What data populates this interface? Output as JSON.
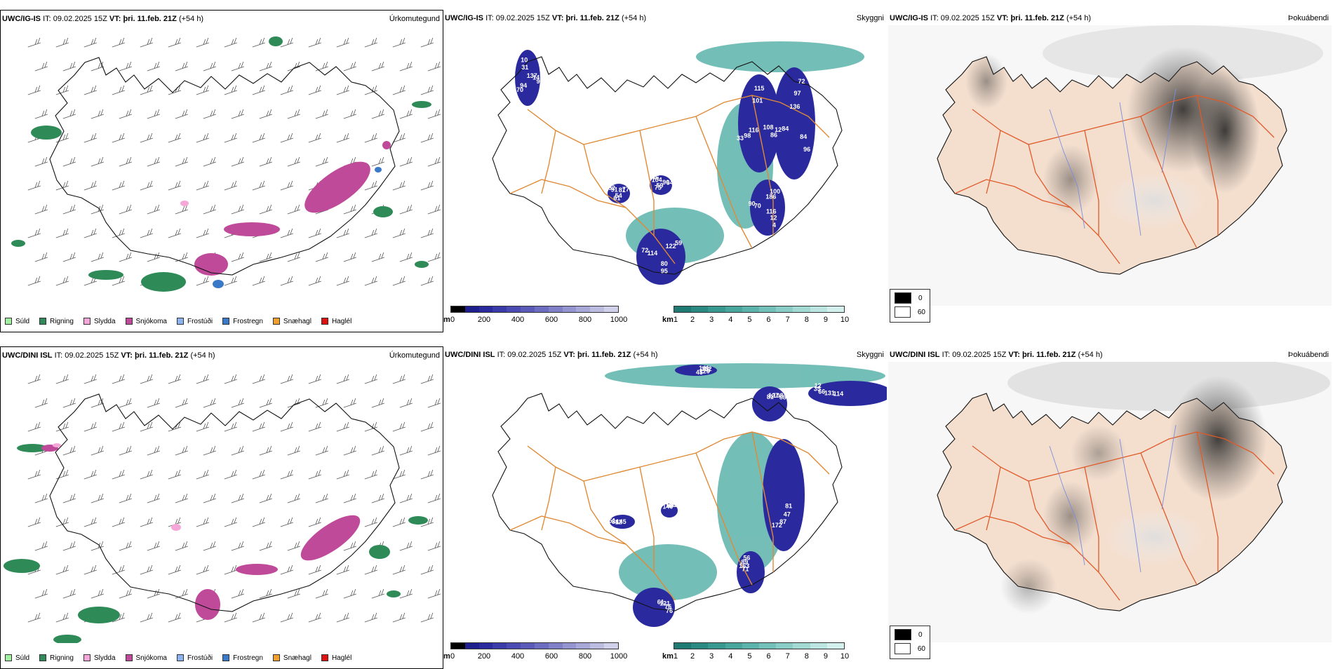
{
  "rows": [
    {
      "model": "UWC/IG-IS",
      "it_label": "IT:",
      "it_value": "09.02.2025 15Z",
      "vt_label": "VT:",
      "vt_value": "þri. 11.feb. 21Z",
      "lead": "(+54 h)",
      "labels": {
        "visibility": [
          "137",
          "116",
          "136",
          "116",
          "114",
          "81",
          "59",
          "31",
          "108",
          "84",
          "186",
          "80",
          "91",
          "90",
          "94",
          "101",
          "84",
          "70",
          "122",
          "54",
          "104",
          "14",
          "98",
          "97",
          "12",
          "72",
          "77",
          "75",
          "10",
          "86",
          "12",
          "100",
          "95",
          "82",
          "64",
          "70",
          "115",
          "96",
          "90",
          "59",
          "61",
          "46",
          "90",
          "33",
          "72",
          "4"
        ]
      }
    },
    {
      "model": "UWC/DINI ISL",
      "it_label": "IT:",
      "it_value": "09.02.2025 15Z",
      "vt_label": "VT:",
      "vt_value": "þri. 11.feb. 21Z",
      "lead": "(+54 h)",
      "labels": {
        "visibility": [
          "141",
          "114",
          "81",
          "81",
          "71",
          "61",
          "145",
          "140",
          "132",
          "131",
          "127",
          "47",
          "163",
          "121",
          "12",
          "16",
          "76",
          "66",
          "108",
          "87",
          "89",
          "76",
          "84",
          "65",
          "120",
          "35",
          "68",
          "172",
          "56",
          "76",
          "51",
          "81",
          "45",
          "12"
        ]
      }
    }
  ],
  "panel_titles": {
    "precip": "Úrkomutegund",
    "visibility": "Skyggni",
    "fog": "Þokuábendi"
  },
  "precip_legend": [
    {
      "label": "Súld",
      "color": "#a3f0a3"
    },
    {
      "label": "Rigning",
      "color": "#2e8b57"
    },
    {
      "label": "Slydda",
      "color": "#f5a8d8"
    },
    {
      "label": "Snjókoma",
      "color": "#c04a9a"
    },
    {
      "label": "Frostúði",
      "color": "#8ab4f0"
    },
    {
      "label": "Frostregn",
      "color": "#3a78c8"
    },
    {
      "label": "Snæhagl",
      "color": "#f0a030"
    },
    {
      "label": "Haglél",
      "color": "#e01010"
    }
  ],
  "cloud_colorbar": {
    "unit": "m",
    "ticks": [
      "0",
      "200",
      "400",
      "600",
      "800",
      "1000"
    ],
    "colors": [
      "#000000",
      "#1e1e8c",
      "#2a2a9e",
      "#3a3aa8",
      "#4a4ab2",
      "#5a5ab8",
      "#6c6cc0",
      "#8080c8",
      "#9494d0",
      "#a8a8d8",
      "#bcbce0",
      "#d0d0ea"
    ]
  },
  "visibility_colorbar": {
    "unit": "km",
    "ticks": [
      "1",
      "2",
      "3",
      "4",
      "5",
      "6",
      "7",
      "8",
      "9",
      "10"
    ],
    "colors": [
      "#1f7a73",
      "#2a8a82",
      "#379890",
      "#48a69d",
      "#5cb3ab",
      "#72c0b8",
      "#8acdc6",
      "#a2d9d3",
      "#bbe5e0",
      "#d4f0ec"
    ]
  },
  "fog_legend": [
    {
      "label": "0",
      "color": "#000000"
    },
    {
      "label": "60",
      "color": "#ffffff"
    }
  ]
}
